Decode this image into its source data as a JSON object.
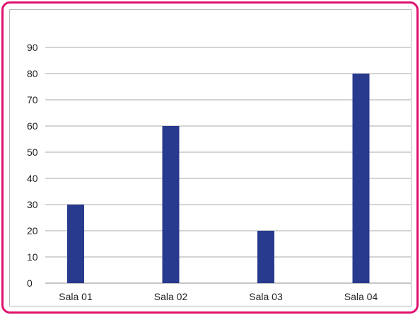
{
  "chart_data": {
    "type": "bar",
    "categories": [
      "Sala 01",
      "Sala 02",
      "Sala 03",
      "Sala 04"
    ],
    "values": [
      30,
      60,
      20,
      80
    ],
    "title": "",
    "xlabel": "",
    "ylabel": "",
    "ylim": [
      0,
      90
    ],
    "yticks": [
      0,
      10,
      20,
      30,
      40,
      50,
      60,
      70,
      80,
      90
    ],
    "grid": true,
    "legend": "none",
    "colors": {
      "bar": "#283a8e",
      "grid": "#8c8c8c",
      "frame_border": "#e0116e",
      "inner_border": "#b9b9b9"
    }
  }
}
